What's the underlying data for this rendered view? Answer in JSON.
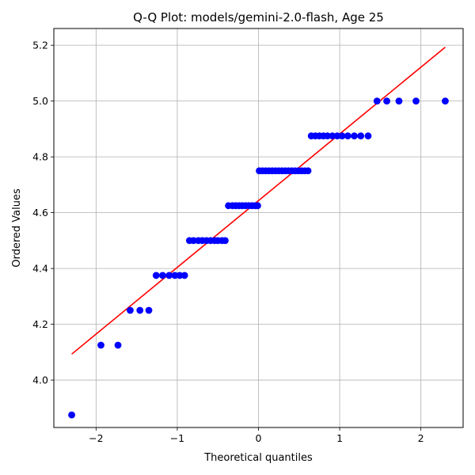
{
  "chart_data": {
    "type": "scatter",
    "title": "Q-Q Plot: models/gemini-2.0-flash, Age 25",
    "xlabel": "Theoretical quantiles",
    "ylabel": "Ordered Values",
    "xlim": [
      -2.52,
      2.52
    ],
    "ylim": [
      3.83,
      5.26
    ],
    "xticks": [
      -2,
      -1,
      0,
      1,
      2
    ],
    "xtick_labels": [
      "−2",
      "−1",
      "0",
      "1",
      "2"
    ],
    "yticks": [
      4.0,
      4.2,
      4.4,
      4.6,
      4.8,
      5.0,
      5.2
    ],
    "ytick_labels": [
      "4.0",
      "4.2",
      "4.4",
      "4.6",
      "4.8",
      "5.0",
      "5.2"
    ],
    "grid": true,
    "marker_color": "#0000ff",
    "line_color": "#ff0000",
    "series": [
      {
        "type": "scatter",
        "points": [
          [
            -2.3,
            3.875
          ],
          [
            -1.94,
            4.125
          ],
          [
            -1.73,
            4.125
          ],
          [
            -1.58,
            4.25
          ],
          [
            -1.46,
            4.25
          ],
          [
            -1.35,
            4.25
          ],
          [
            -1.26,
            4.375
          ],
          [
            -1.18,
            4.375
          ],
          [
            -1.1,
            4.375
          ],
          [
            -1.03,
            4.375
          ],
          [
            -0.97,
            4.375
          ],
          [
            -0.91,
            4.375
          ],
          [
            -0.85,
            4.5
          ],
          [
            -0.8,
            4.5
          ],
          [
            -0.74,
            4.5
          ],
          [
            -0.69,
            4.5
          ],
          [
            -0.64,
            4.5
          ],
          [
            -0.59,
            4.5
          ],
          [
            -0.54,
            4.5
          ],
          [
            -0.5,
            4.5
          ],
          [
            -0.45,
            4.5
          ],
          [
            -0.41,
            4.5
          ],
          [
            -0.37,
            4.625
          ],
          [
            -0.32,
            4.625
          ],
          [
            -0.28,
            4.625
          ],
          [
            -0.24,
            4.625
          ],
          [
            -0.2,
            4.625
          ],
          [
            -0.16,
            4.625
          ],
          [
            -0.12,
            4.625
          ],
          [
            -0.08,
            4.625
          ],
          [
            -0.04,
            4.625
          ],
          [
            -0.01,
            4.625
          ],
          [
            0.01,
            4.75
          ],
          [
            0.05,
            4.75
          ],
          [
            0.09,
            4.75
          ],
          [
            0.13,
            4.75
          ],
          [
            0.17,
            4.75
          ],
          [
            0.21,
            4.75
          ],
          [
            0.25,
            4.75
          ],
          [
            0.29,
            4.75
          ],
          [
            0.33,
            4.75
          ],
          [
            0.37,
            4.75
          ],
          [
            0.41,
            4.75
          ],
          [
            0.45,
            4.75
          ],
          [
            0.49,
            4.75
          ],
          [
            0.53,
            4.75
          ],
          [
            0.57,
            4.75
          ],
          [
            0.61,
            4.75
          ],
          [
            0.65,
            4.875
          ],
          [
            0.7,
            4.875
          ],
          [
            0.75,
            4.875
          ],
          [
            0.8,
            4.875
          ],
          [
            0.85,
            4.875
          ],
          [
            0.91,
            4.875
          ],
          [
            0.97,
            4.875
          ],
          [
            1.03,
            4.875
          ],
          [
            1.1,
            4.875
          ],
          [
            1.18,
            4.875
          ],
          [
            1.26,
            4.875
          ],
          [
            1.35,
            4.875
          ],
          [
            1.46,
            5.0
          ],
          [
            1.58,
            5.0
          ],
          [
            1.73,
            5.0
          ],
          [
            1.94,
            5.0
          ],
          [
            2.3,
            5.0
          ]
        ]
      },
      {
        "type": "line",
        "points": [
          [
            -2.3,
            4.093
          ],
          [
            2.3,
            5.193
          ]
        ]
      }
    ]
  }
}
